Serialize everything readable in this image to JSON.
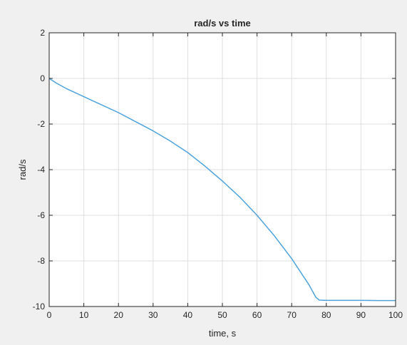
{
  "chart_data": {
    "type": "line",
    "title": "rad/s  vs time",
    "xlabel": "time, s",
    "ylabel": "rad/s",
    "xlim": [
      0,
      100
    ],
    "ylim": [
      -10,
      2
    ],
    "xticks": [
      0,
      10,
      20,
      30,
      40,
      50,
      60,
      70,
      80,
      90,
      100
    ],
    "yticks": [
      -10,
      -8,
      -6,
      -4,
      -2,
      0,
      2
    ],
    "grid": true,
    "legend": "none",
    "series": [
      {
        "color": "#4ea3dc",
        "x": [
          0,
          2,
          5,
          10,
          15,
          20,
          25,
          30,
          35,
          40,
          45,
          50,
          55,
          60,
          65,
          70,
          75,
          77,
          78,
          80,
          85,
          90,
          95,
          100
        ],
        "y": [
          0,
          -0.2,
          -0.45,
          -0.8,
          -1.15,
          -1.5,
          -1.9,
          -2.3,
          -2.75,
          -3.25,
          -3.85,
          -4.5,
          -5.2,
          -6.0,
          -6.9,
          -7.9,
          -9.05,
          -9.6,
          -9.72,
          -9.73,
          -9.73,
          -9.73,
          -9.74,
          -9.74
        ]
      }
    ]
  }
}
